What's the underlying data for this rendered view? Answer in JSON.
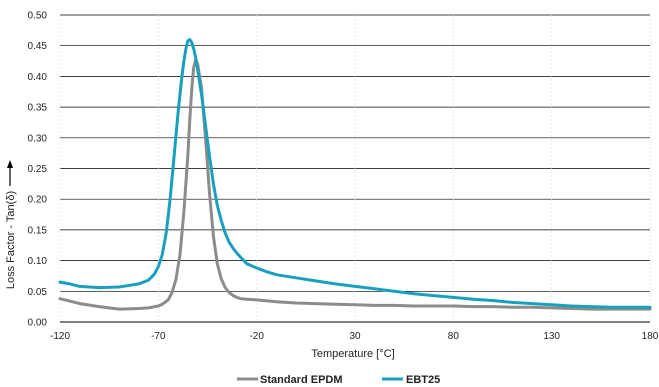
{
  "chart_data": {
    "type": "line",
    "title": "",
    "xlabel": "Temperature [°C]",
    "ylabel": "Loss Factor - Tan(δ)",
    "xlim": [
      -120,
      180
    ],
    "ylim": [
      0,
      0.5
    ],
    "x_ticks": [
      -120,
      -70,
      -20,
      30,
      80,
      130,
      180
    ],
    "x_tick_labels": [
      "-120",
      "-70",
      "-20",
      "30",
      "80",
      "130",
      "180"
    ],
    "y_ticks": [
      0,
      0.05,
      0.1,
      0.15,
      0.2,
      0.25,
      0.3,
      0.35,
      0.4,
      0.45,
      0.5
    ],
    "y_tick_labels": [
      "0.00",
      "0.05",
      "0.10",
      "0.15",
      "0.20",
      "0.25",
      "0.30",
      "0.35",
      "0.40",
      "0.45",
      "0.50"
    ],
    "grid": "horizontal",
    "legend_position": "bottom",
    "series": [
      {
        "name": "Standard EPDM",
        "color": "#8c8c8c",
        "x": [
          -120,
          -115,
          -110,
          -100,
          -90,
          -80,
          -75,
          -70,
          -68,
          -65,
          -63,
          -61,
          -59,
          -57,
          -55,
          -54,
          -53,
          -52,
          -51,
          -50,
          -48,
          -46,
          -44,
          -42,
          -40,
          -38,
          -36,
          -34,
          -32,
          -30,
          -28,
          -25,
          -20,
          -10,
          0,
          10,
          20,
          30,
          40,
          50,
          60,
          70,
          80,
          90,
          100,
          110,
          120,
          130,
          140,
          150,
          160,
          170,
          180
        ],
        "y": [
          0.038,
          0.034,
          0.03,
          0.025,
          0.021,
          0.022,
          0.023,
          0.026,
          0.029,
          0.036,
          0.048,
          0.07,
          0.11,
          0.18,
          0.27,
          0.33,
          0.38,
          0.415,
          0.427,
          0.42,
          0.38,
          0.3,
          0.21,
          0.14,
          0.095,
          0.07,
          0.056,
          0.048,
          0.043,
          0.04,
          0.038,
          0.037,
          0.036,
          0.033,
          0.031,
          0.03,
          0.029,
          0.028,
          0.027,
          0.027,
          0.026,
          0.026,
          0.026,
          0.025,
          0.025,
          0.024,
          0.024,
          0.023,
          0.022,
          0.021,
          0.021,
          0.021,
          0.021
        ]
      },
      {
        "name": "EBT25",
        "color": "#1aa0bf",
        "x": [
          -120,
          -115,
          -110,
          -100,
          -90,
          -80,
          -75,
          -72,
          -70,
          -68,
          -66,
          -64,
          -62,
          -60,
          -58,
          -57,
          -56,
          -55,
          -54,
          -53,
          -52,
          -51,
          -50,
          -48,
          -46,
          -44,
          -42,
          -40,
          -38,
          -36,
          -34,
          -32,
          -30,
          -28,
          -25,
          -20,
          -15,
          -10,
          0,
          10,
          20,
          30,
          40,
          50,
          60,
          70,
          80,
          90,
          100,
          110,
          120,
          130,
          140,
          150,
          160,
          170,
          180
        ],
        "y": [
          0.065,
          0.062,
          0.058,
          0.056,
          0.057,
          0.062,
          0.068,
          0.078,
          0.09,
          0.11,
          0.145,
          0.2,
          0.27,
          0.34,
          0.4,
          0.425,
          0.445,
          0.458,
          0.46,
          0.455,
          0.445,
          0.43,
          0.41,
          0.37,
          0.32,
          0.27,
          0.225,
          0.19,
          0.165,
          0.145,
          0.13,
          0.12,
          0.112,
          0.105,
          0.095,
          0.088,
          0.082,
          0.077,
          0.072,
          0.067,
          0.062,
          0.058,
          0.054,
          0.05,
          0.046,
          0.043,
          0.04,
          0.037,
          0.035,
          0.032,
          0.03,
          0.028,
          0.026,
          0.025,
          0.024,
          0.024,
          0.024
        ]
      }
    ]
  }
}
